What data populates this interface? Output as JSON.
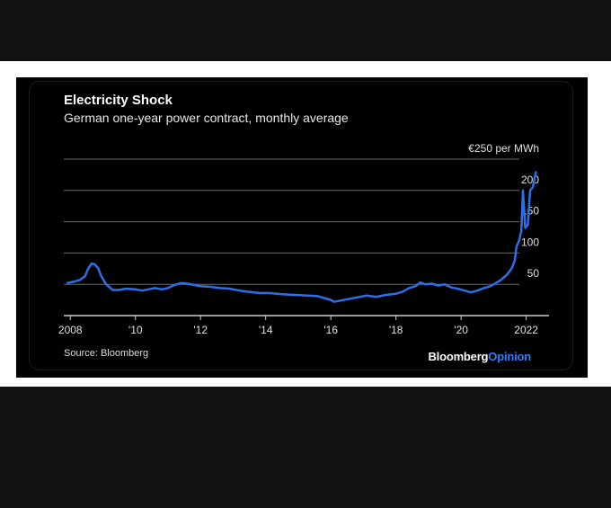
{
  "frame": {
    "background": "#111111",
    "band": "#ffffff",
    "card": "#000000"
  },
  "colors": {
    "line": "#2d6fe8",
    "grid": "#6b6b6b",
    "text": "#ffffff"
  },
  "chart_data": {
    "type": "line",
    "title": "Electricity Shock",
    "subtitle": "German one-year power contract, monthly average",
    "unit_label": "€250 per MWh",
    "source": "Source: Bloomberg",
    "brand": {
      "main": "Bloomberg",
      "accent": "Opinion"
    },
    "xlim": [
      2007.8,
      2022.7
    ],
    "ylim": [
      0,
      250
    ],
    "yticks": [
      {
        "value": 250,
        "label": "€250 per MWh"
      },
      {
        "value": 200,
        "label": "200"
      },
      {
        "value": 150,
        "label": "150"
      },
      {
        "value": 100,
        "label": "100"
      },
      {
        "value": 50,
        "label": "50"
      }
    ],
    "xticks": [
      {
        "value": 2008,
        "label": "2008"
      },
      {
        "value": 2010,
        "label": "'10"
      },
      {
        "value": 2012,
        "label": "'12"
      },
      {
        "value": 2014,
        "label": "'14"
      },
      {
        "value": 2016,
        "label": "'16"
      },
      {
        "value": 2018,
        "label": "'18"
      },
      {
        "value": 2020,
        "label": "'20"
      },
      {
        "value": 2022,
        "label": "2022"
      }
    ],
    "grid": true,
    "series": [
      {
        "points": [
          [
            2007.9,
            52
          ],
          [
            2008.1,
            54
          ],
          [
            2008.3,
            57
          ],
          [
            2008.45,
            63
          ],
          [
            2008.55,
            75
          ],
          [
            2008.65,
            83
          ],
          [
            2008.75,
            82
          ],
          [
            2008.85,
            76
          ],
          [
            2008.95,
            63
          ],
          [
            2009.1,
            50
          ],
          [
            2009.3,
            41
          ],
          [
            2009.5,
            41
          ],
          [
            2009.7,
            43
          ],
          [
            2010.0,
            42
          ],
          [
            2010.2,
            40
          ],
          [
            2010.4,
            42
          ],
          [
            2010.6,
            44
          ],
          [
            2010.8,
            42
          ],
          [
            2011.0,
            44
          ],
          [
            2011.2,
            49
          ],
          [
            2011.4,
            52
          ],
          [
            2011.6,
            51
          ],
          [
            2011.8,
            49
          ],
          [
            2012.0,
            47
          ],
          [
            2012.3,
            46
          ],
          [
            2012.6,
            44
          ],
          [
            2012.9,
            43
          ],
          [
            2013.2,
            40
          ],
          [
            2013.5,
            38
          ],
          [
            2013.8,
            36
          ],
          [
            2014.1,
            36
          ],
          [
            2014.5,
            34
          ],
          [
            2014.9,
            33
          ],
          [
            2015.3,
            32
          ],
          [
            2015.6,
            31
          ],
          [
            2015.8,
            28
          ],
          [
            2016.0,
            25
          ],
          [
            2016.1,
            22
          ],
          [
            2016.3,
            24
          ],
          [
            2016.6,
            27
          ],
          [
            2016.9,
            30
          ],
          [
            2017.1,
            32
          ],
          [
            2017.4,
            30
          ],
          [
            2017.7,
            33
          ],
          [
            2018.0,
            35
          ],
          [
            2018.2,
            38
          ],
          [
            2018.4,
            44
          ],
          [
            2018.6,
            47
          ],
          [
            2018.75,
            53
          ],
          [
            2018.9,
            50
          ],
          [
            2019.1,
            51
          ],
          [
            2019.3,
            48
          ],
          [
            2019.5,
            50
          ],
          [
            2019.7,
            45
          ],
          [
            2019.9,
            43
          ],
          [
            2020.1,
            40
          ],
          [
            2020.3,
            37
          ],
          [
            2020.5,
            40
          ],
          [
            2020.7,
            44
          ],
          [
            2020.9,
            47
          ],
          [
            2021.0,
            50
          ],
          [
            2021.2,
            56
          ],
          [
            2021.4,
            65
          ],
          [
            2021.55,
            75
          ],
          [
            2021.65,
            88
          ],
          [
            2021.7,
            110
          ],
          [
            2021.78,
            120
          ],
          [
            2021.85,
            135
          ],
          [
            2021.9,
            200
          ],
          [
            2021.97,
            140
          ],
          [
            2022.05,
            145
          ],
          [
            2022.12,
            200
          ],
          [
            2022.2,
            205
          ],
          [
            2022.3,
            230
          ]
        ]
      }
    ]
  }
}
